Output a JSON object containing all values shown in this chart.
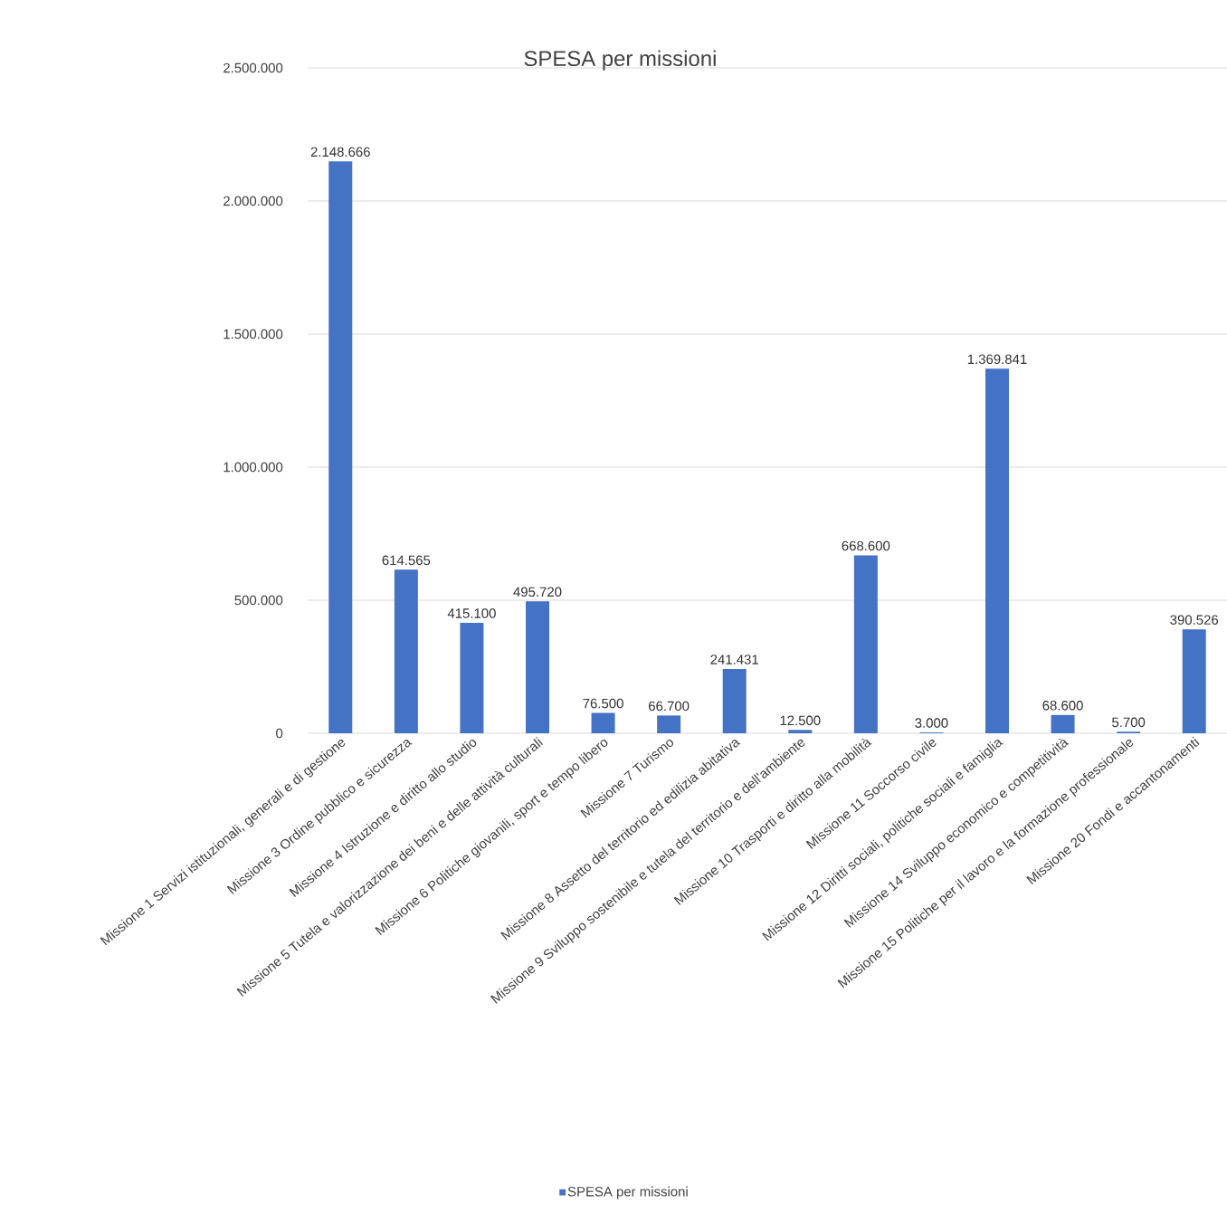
{
  "chart_data": {
    "type": "bar",
    "title": "SPESA per missioni",
    "categories": [
      "Missione 1 Servizi istituzionali, generali e di gestione",
      "Missione 3 Ordine pubblico e sicurezza",
      "Missione 4 Istruzione e diritto allo studio",
      "Missione 5 Tutela e valorizzazione dei beni e delle attività culturali",
      "Missione 6 Politiche giovanili, sport e tempo libero",
      "Missione 7 Turismo",
      "Missione 8 Assetto del territorio ed edilizia abitativa",
      "Missione 9 Sviluppo sostenibile e tutela del territorio e dell'ambiente",
      "Missione 10 Trasporti e diritto alla mobilità",
      "Missione 11 Soccorso civile",
      "Missione 12 Diritti sociali, politiche sociali e famiglia",
      "Missione 14 Sviluppo economico e competitività",
      "Missione 15 Politiche per il lavoro e la formazione professionale",
      "Missione 20 Fondi e accantonamenti"
    ],
    "series": [
      {
        "name": "SPESA per missioni",
        "color": "#4472c4",
        "values": [
          2148666,
          614565,
          415100,
          495720,
          76500,
          66700,
          241431,
          12500,
          668600,
          3000,
          1369841,
          68600,
          5700,
          390526
        ],
        "value_labels": [
          "2.148.666",
          "614.565",
          "415.100",
          "495.720",
          "76.500",
          "66.700",
          "241.431",
          "12.500",
          "668.600",
          "3.000",
          "1.369.841",
          "68.600",
          "5.700",
          "390.526"
        ]
      }
    ],
    "ylim": [
      0,
      2500000
    ],
    "yticks": [
      0,
      {
        "value": 500000,
        "label": "500.000"
      },
      {
        "value": 1000000,
        "label": "1.000.000"
      },
      {
        "value": 1500000,
        "label": "1.500.000"
      },
      {
        "value": 2000000,
        "label": "2.000.000"
      },
      {
        "value": 2500000,
        "label": "2.500.000"
      }
    ],
    "grid": "y",
    "legend": "bottom"
  }
}
